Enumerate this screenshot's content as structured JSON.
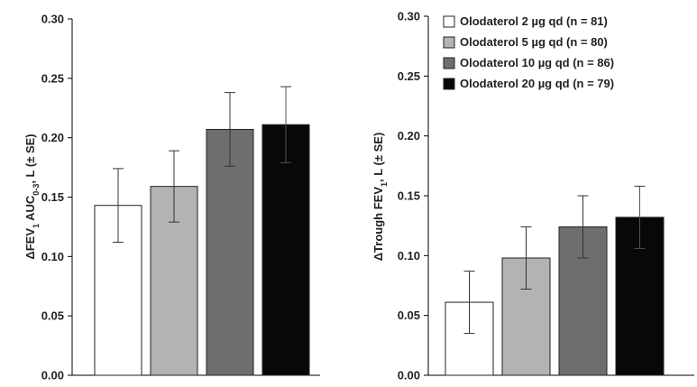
{
  "chart_data": [
    {
      "type": "bar",
      "categories": [
        "Olodaterol 2 µg qd (n = 81)",
        "Olodaterol 5 µg qd (n = 80)",
        "Olodaterol 10 µg qd (n = 86)",
        "Olodaterol 20 µg qd (n = 79)"
      ],
      "values": [
        0.143,
        0.159,
        0.207,
        0.211
      ],
      "error": [
        0.031,
        0.03,
        0.031,
        0.032
      ],
      "ylabel_parts": [
        "ΔFEV",
        "1",
        " AUC",
        "0-3",
        ", L (± SE)"
      ],
      "yticks": [
        "0.00",
        "0.05",
        "0.10",
        "0.15",
        "0.20",
        "0.25",
        "0.30"
      ],
      "ylim": [
        0,
        0.3
      ],
      "grid": false,
      "legend": false
    },
    {
      "type": "bar",
      "categories": [
        "Olodaterol 2 µg qd (n = 81)",
        "Olodaterol 5 µg qd (n = 80)",
        "Olodaterol 10 µg qd (n = 86)",
        "Olodaterol 20 µg qd (n = 79)"
      ],
      "values": [
        0.061,
        0.098,
        0.124,
        0.132
      ],
      "error": [
        0.026,
        0.026,
        0.026,
        0.026
      ],
      "ylabel_parts": [
        "ΔTrough FEV",
        "1",
        ", L (± SE)"
      ],
      "yticks": [
        "0.00",
        "0.05",
        "0.10",
        "0.15",
        "0.20",
        "0.25",
        "0.30"
      ],
      "ylim": [
        0,
        0.3
      ],
      "grid": false,
      "legend": "top-left"
    }
  ],
  "colors": {
    "bars": [
      "#ffffff",
      "#b3b3b3",
      "#6e6e6e",
      "#080808"
    ],
    "outline": "#222222",
    "axis": "#000000"
  }
}
